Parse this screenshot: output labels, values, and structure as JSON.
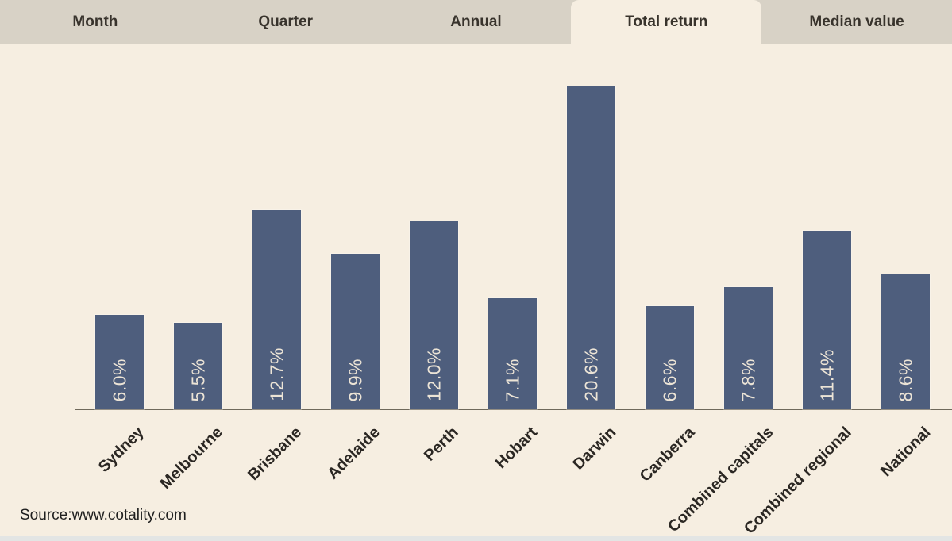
{
  "tab_bar": {
    "tabs": [
      {
        "label": "Month",
        "selected": false
      },
      {
        "label": "Quarter",
        "selected": false
      },
      {
        "label": "Annual",
        "selected": false
      },
      {
        "label": "Total return",
        "selected": true
      },
      {
        "label": "Median value",
        "selected": false
      }
    ]
  },
  "chart_data": {
    "type": "bar",
    "categories": [
      "Sydney",
      "Melbourne",
      "Brisbane",
      "Adelaide",
      "Perth",
      "Hobart",
      "Darwin",
      "Canberra",
      "Combined capitals",
      "Combined regional",
      "National"
    ],
    "values": [
      6.0,
      5.5,
      12.7,
      9.9,
      12.0,
      7.1,
      20.6,
      6.6,
      7.8,
      11.4,
      8.6
    ],
    "value_labels": [
      "6.0%",
      "5.5%",
      "12.7%",
      "9.9%",
      "12.0%",
      "7.1%",
      "20.6%",
      "6.6%",
      "7.8%",
      "11.4%",
      "8.6%"
    ],
    "title": "",
    "xlabel": "",
    "ylabel": "",
    "ylim": [
      0,
      21
    ],
    "grid": false,
    "legend_position": "none",
    "value_label_rotation": 90,
    "category_label_rotation": 45,
    "bar_color": "#4e5e7d",
    "bar_label_color": "#ece4d6",
    "axis_line_color": "#6f695b",
    "category_label_color": "#2b2723",
    "background_color": "#f6eee1",
    "tab_bar_color": "#d8d2c6"
  },
  "footer": {
    "source_text": "Source:www.cotality.com"
  }
}
